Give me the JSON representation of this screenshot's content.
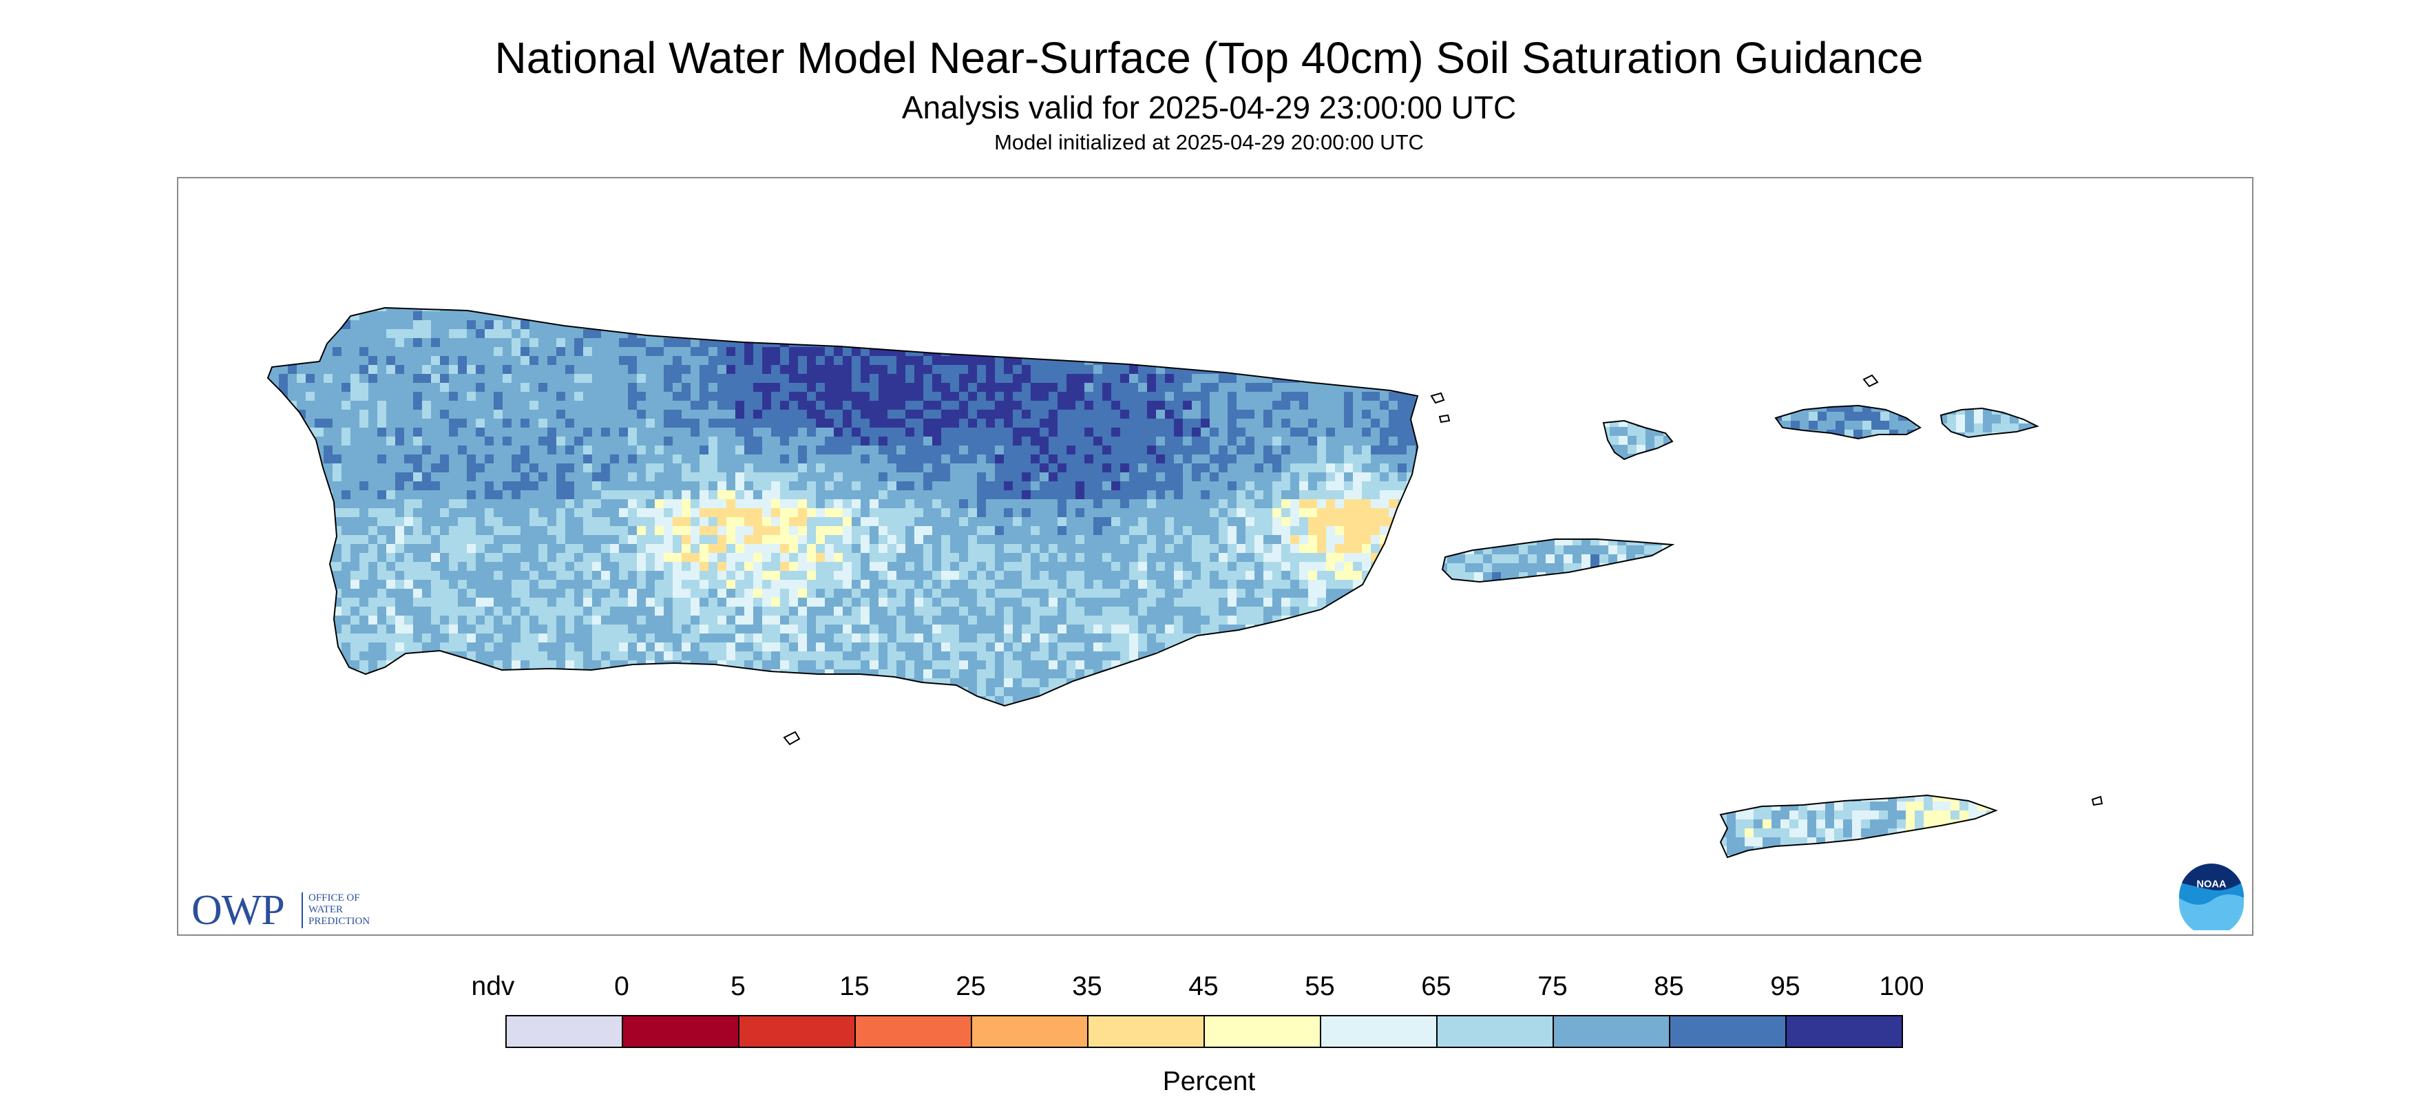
{
  "title": "National Water Model Near-Surface (Top 40cm) Soil Saturation Guidance",
  "subtitle": "Analysis valid for 2025-04-29 23:00:00 UTC",
  "init_text": "Model initialized at 2025-04-29 20:00:00 UTC",
  "logos": {
    "owp_short": "OWP",
    "owp_long": [
      "OFFICE OF",
      "WATER",
      "PREDICTION"
    ],
    "noaa": "NOAA"
  },
  "colorbar": {
    "units": "Percent",
    "labels": [
      "ndv",
      "0",
      "5",
      "15",
      "25",
      "35",
      "45",
      "55",
      "65",
      "75",
      "85",
      "95",
      "100"
    ],
    "colors": [
      "#dcdcf0",
      "#a50026",
      "#d73027",
      "#f46d43",
      "#fdae61",
      "#fee090",
      "#ffffbf",
      "#e0f3f8",
      "#abd9e9",
      "#74add1",
      "#4575b4",
      "#313695"
    ]
  },
  "map": {
    "regions": [
      "Puerto Rico",
      "Vieques",
      "Culebra",
      "St. Thomas",
      "St. John",
      "St. Croix"
    ],
    "dominant_class_colors": [
      "#313695",
      "#4575b4",
      "#74add1",
      "#abd9e9",
      "#e0f3f8",
      "#ffffbf",
      "#fee090"
    ]
  }
}
